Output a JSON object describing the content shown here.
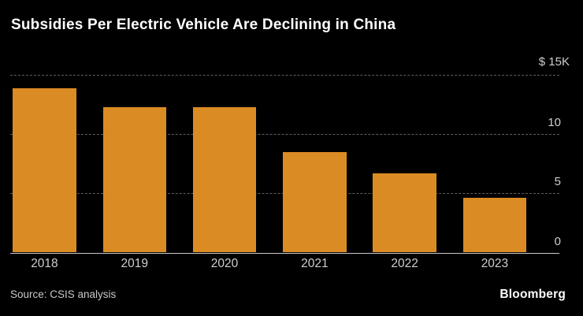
{
  "title": "Subsidies Per Electric Vehicle Are Declining in China",
  "source": "Source: CSIS analysis",
  "brand": "Bloomberg",
  "colors": {
    "background": "#000000",
    "bar": "#db8b23",
    "grid": "#5f5f5f",
    "baseline": "#c8c8c8",
    "axis_text": "#cfcfcf",
    "title_text": "#ffffff"
  },
  "chart_data": {
    "type": "bar",
    "title": "Subsidies Per Electric Vehicle Are Declining in China",
    "categories": [
      "2018",
      "2019",
      "2020",
      "2021",
      "2022",
      "2023"
    ],
    "values": [
      13.9,
      12.3,
      12.3,
      8.5,
      6.7,
      4.6
    ],
    "xlabel": "",
    "ylabel": "",
    "ylim": [
      0,
      15
    ],
    "yticks": [
      {
        "value": 15,
        "label": "$ 15K"
      },
      {
        "value": 10,
        "label": "10"
      },
      {
        "value": 5,
        "label": "5"
      },
      {
        "value": 0,
        "label": "0"
      }
    ],
    "grid": "horizontal-dashed",
    "legend": "none",
    "tick_label_position": "right"
  }
}
